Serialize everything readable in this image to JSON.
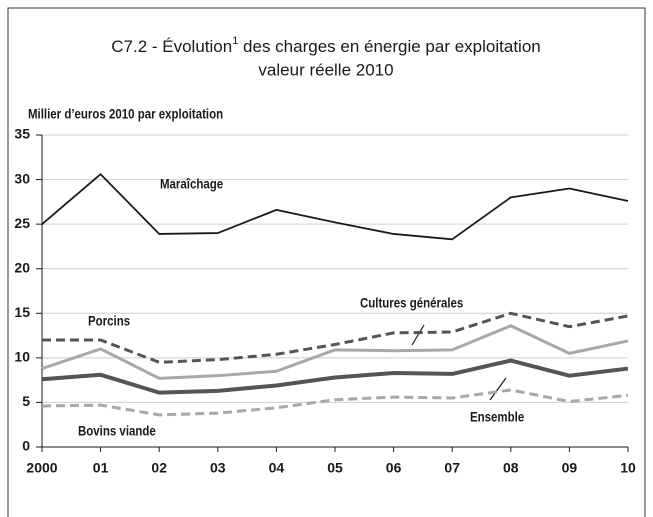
{
  "chart_data": {
    "type": "line",
    "title_parts": [
      "C7.2 - Évolution",
      "1",
      " des charges en énergie par exploitation"
    ],
    "subtitle": "valeur réelle 2010",
    "y_label": "Millier d’euros 2010 par exploitation",
    "categories": [
      "2000",
      "01",
      "02",
      "03",
      "04",
      "05",
      "06",
      "07",
      "08",
      "09",
      "10"
    ],
    "ylim": [
      0,
      35
    ],
    "yticks": [
      0,
      5,
      10,
      15,
      20,
      25,
      30,
      35
    ],
    "series": [
      {
        "name": "Maraîchage",
        "color": "#1a1a1a",
        "dashed": false,
        "values": [
          25,
          30.6,
          23.9,
          24,
          26.6,
          25.2,
          23.9,
          23.3,
          28,
          29,
          27.6
        ]
      },
      {
        "name": "Porcins",
        "color": "#555555",
        "dashed": true,
        "values": [
          12,
          12,
          9.5,
          9.8,
          10.4,
          11.5,
          12.8,
          12.9,
          15,
          13.5,
          14.7
        ]
      },
      {
        "name": "Cultures générales",
        "color": "#a8a8a8",
        "dashed": false,
        "values": [
          8.8,
          11,
          7.7,
          8,
          8.5,
          10.9,
          10.8,
          10.9,
          13.6,
          10.5,
          11.9
        ]
      },
      {
        "name": "Ensemble",
        "color": "#555555",
        "dashed": false,
        "values": [
          7.6,
          8.1,
          6.1,
          6.3,
          6.9,
          7.8,
          8.3,
          8.2,
          9.7,
          8.0,
          8.8
        ]
      },
      {
        "name": "Bovins viande",
        "color": "#a8a8a8",
        "dashed": true,
        "values": [
          4.6,
          4.7,
          3.6,
          3.8,
          4.4,
          5.3,
          5.6,
          5.5,
          6.4,
          5.1,
          5.8
        ]
      }
    ]
  }
}
